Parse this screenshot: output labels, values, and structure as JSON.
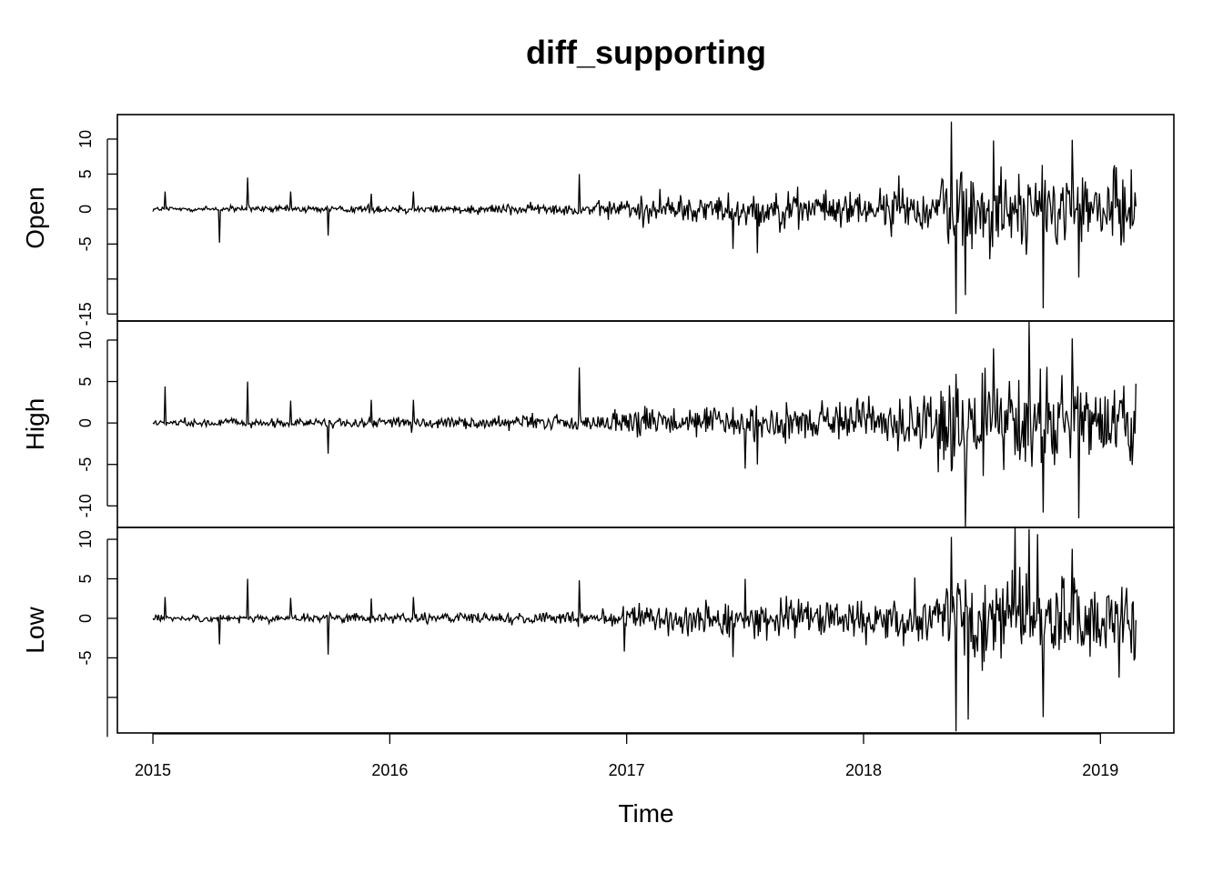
{
  "chart_data": {
    "type": "line",
    "title": "diff_supporting",
    "xlabel": "Time",
    "x_ticks": [
      "2015",
      "2016",
      "2017",
      "2018",
      "2019"
    ],
    "xlim": [
      2014.85,
      2019.31
    ],
    "x_range": [
      2015.0,
      2019.15
    ],
    "panels": [
      {
        "name": "Open",
        "ylim": [
          -16,
          13.5
        ],
        "y_ticks": [
          "-15",
          "",
          "-5",
          "0",
          "5",
          "10"
        ],
        "y_tick_values": [
          -15,
          -10,
          -5,
          0,
          5,
          10
        ],
        "envelope": [
          [
            2015.0,
            0.4
          ],
          [
            2016.0,
            0.6
          ],
          [
            2016.85,
            0.9
          ],
          [
            2017.0,
            1.8
          ],
          [
            2017.5,
            2.3
          ],
          [
            2018.0,
            2.7
          ],
          [
            2018.3,
            3.0
          ],
          [
            2018.35,
            6.5
          ],
          [
            2019.15,
            5.0
          ]
        ],
        "spikes": [
          [
            2015.05,
            2.5
          ],
          [
            2015.28,
            -4.8
          ],
          [
            2015.4,
            4.5
          ],
          [
            2015.58,
            2.5
          ],
          [
            2015.74,
            -3.8
          ],
          [
            2015.92,
            2.2
          ],
          [
            2016.1,
            2.5
          ],
          [
            2016.8,
            5.0
          ],
          [
            2017.45,
            -5.7
          ],
          [
            2017.55,
            -6.3
          ],
          [
            2018.15,
            4.8
          ],
          [
            2018.37,
            12.5
          ],
          [
            2018.39,
            -15.0
          ],
          [
            2018.43,
            -12.3
          ],
          [
            2018.55,
            9.8
          ],
          [
            2018.76,
            -14.2
          ],
          [
            2018.88,
            9.9
          ],
          [
            2018.91,
            -9.8
          ]
        ]
      },
      {
        "name": "High",
        "ylim": [
          -12.6,
          12.3
        ],
        "y_ticks": [
          "-10",
          "-5",
          "0",
          "5",
          "10"
        ],
        "y_tick_values": [
          -10,
          -5,
          0,
          5,
          10
        ],
        "envelope": [
          [
            2015.0,
            0.4
          ],
          [
            2016.0,
            0.6
          ],
          [
            2016.85,
            0.9
          ],
          [
            2017.0,
            1.7
          ],
          [
            2017.5,
            2.2
          ],
          [
            2018.0,
            2.5
          ],
          [
            2018.3,
            2.9
          ],
          [
            2018.35,
            6.0
          ],
          [
            2019.15,
            5.0
          ]
        ],
        "spikes": [
          [
            2015.05,
            4.4
          ],
          [
            2015.4,
            5.0
          ],
          [
            2015.58,
            2.7
          ],
          [
            2015.74,
            -3.7
          ],
          [
            2015.92,
            2.8
          ],
          [
            2016.1,
            2.8
          ],
          [
            2016.8,
            6.7
          ],
          [
            2017.5,
            -5.5
          ],
          [
            2017.55,
            -5.0
          ],
          [
            2018.43,
            -12.5
          ],
          [
            2018.55,
            9.0
          ],
          [
            2018.7,
            12.2
          ],
          [
            2018.76,
            -10.8
          ],
          [
            2018.88,
            10.2
          ],
          [
            2018.91,
            -11.5
          ]
        ]
      },
      {
        "name": "Low",
        "ylim": [
          -14.5,
          11.5
        ],
        "y_ticks": [
          "-15",
          "",
          "-5",
          "0",
          "5",
          "10"
        ],
        "y_tick_values": [
          -15,
          -10,
          -5,
          0,
          5,
          10
        ],
        "envelope": [
          [
            2015.0,
            0.4
          ],
          [
            2016.0,
            0.6
          ],
          [
            2016.85,
            0.9
          ],
          [
            2017.0,
            1.7
          ],
          [
            2017.5,
            2.4
          ],
          [
            2018.0,
            2.6
          ],
          [
            2018.3,
            3.0
          ],
          [
            2018.35,
            6.0
          ],
          [
            2019.15,
            5.0
          ]
        ],
        "spikes": [
          [
            2015.05,
            2.7
          ],
          [
            2015.28,
            -3.3
          ],
          [
            2015.4,
            5.0
          ],
          [
            2015.58,
            2.6
          ],
          [
            2015.74,
            -4.6
          ],
          [
            2015.92,
            2.5
          ],
          [
            2016.1,
            2.7
          ],
          [
            2016.8,
            4.8
          ],
          [
            2016.99,
            -4.2
          ],
          [
            2017.5,
            5.0
          ],
          [
            2017.45,
            -4.9
          ],
          [
            2018.37,
            10.3
          ],
          [
            2018.39,
            -14.3
          ],
          [
            2018.44,
            -12.8
          ],
          [
            2018.7,
            11.3
          ],
          [
            2018.76,
            -12.5
          ],
          [
            2018.88,
            8.8
          ],
          [
            2019.08,
            -7.5
          ]
        ]
      }
    ]
  }
}
